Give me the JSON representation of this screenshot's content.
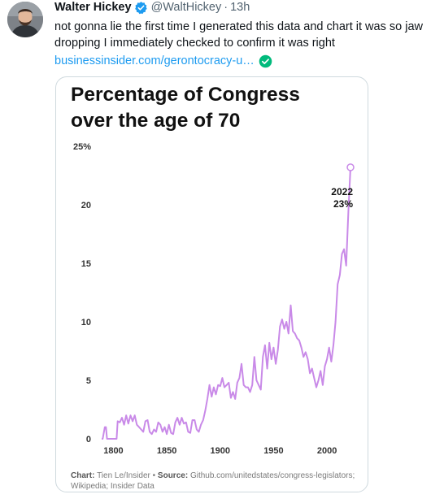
{
  "tweet": {
    "author_name": "Walter Hickey",
    "handle": "@WaltHickey",
    "separator": "·",
    "time": "13h",
    "text": "not gonna lie the first time I generated this data and chart it was so jaw dropping I immediately checked to confirm it was right",
    "link_text": "businessinsider.com/gerontocracy-u…",
    "icons": {
      "verified": "verified-badge-icon",
      "link_check": "check-circle-icon"
    }
  },
  "card": {
    "title": "Percentage of Congress over the age of 70",
    "footer": {
      "chart_label": "Chart:",
      "chart_credit": "Tien Le/Insider",
      "bullet": "•",
      "source_label": "Source:",
      "source_text": "Github.com/unitedstates/congress-legislators; Wikipedia; Insider Data"
    }
  },
  "chart_data": {
    "type": "line",
    "title": "Percentage of Congress over the age of 70",
    "xlabel": "",
    "ylabel": "",
    "xlim": [
      1789,
      2022
    ],
    "ylim": [
      0,
      25
    ],
    "x_ticks": [
      "1800",
      "1850",
      "1900",
      "1950",
      "2000"
    ],
    "x_tick_values": [
      1800,
      1850,
      1900,
      1950,
      2000
    ],
    "y_ticks": [
      "0",
      "5",
      "10",
      "15",
      "20",
      "25%"
    ],
    "y_tick_values": [
      0,
      5,
      10,
      15,
      20,
      25
    ],
    "grid": false,
    "line_color": "#c98ae8",
    "annotation": {
      "year_label": "2022",
      "value_label": "23%",
      "x": 2022,
      "y": 23.2
    },
    "series": [
      {
        "values_x": [
          1789,
          1790,
          1792,
          1793,
          1794,
          1796,
          1798,
          1800,
          1803,
          1804,
          1806,
          1808,
          1810,
          1811,
          1812,
          1814,
          1816,
          1818,
          1820,
          1822,
          1824,
          1826,
          1828,
          1830,
          1832,
          1834,
          1836,
          1838,
          1840,
          1842,
          1844,
          1846,
          1848,
          1850,
          1852,
          1854,
          1856,
          1858,
          1860,
          1862,
          1864,
          1866,
          1868,
          1870,
          1872,
          1874,
          1876,
          1878,
          1880,
          1882,
          1884,
          1886,
          1888,
          1890,
          1892,
          1894,
          1896,
          1898,
          1900,
          1902,
          1904,
          1906,
          1908,
          1910,
          1912,
          1914,
          1916,
          1918,
          1920,
          1922,
          1924,
          1926,
          1928,
          1930,
          1932,
          1934,
          1936,
          1938,
          1940,
          1942,
          1944,
          1946,
          1948,
          1950,
          1952,
          1954,
          1956,
          1958,
          1960,
          1962,
          1964,
          1966,
          1968,
          1970,
          1972,
          1974,
          1976,
          1978,
          1980,
          1982,
          1984,
          1986,
          1988,
          1990,
          1992,
          1994,
          1996,
          1998,
          2000,
          2002,
          2004,
          2006,
          2008,
          2010,
          2012,
          2014,
          2016,
          2018,
          2020,
          2022
        ],
        "values_y": [
          0,
          0,
          1,
          1,
          0,
          0,
          0,
          0,
          0,
          1.5,
          1.4,
          1.8,
          1.2,
          1.6,
          2,
          1.3,
          2,
          1.5,
          2,
          1.2,
          1,
          0.8,
          0.6,
          1.5,
          1.6,
          0.6,
          0.4,
          0.8,
          0.6,
          1.4,
          1.2,
          0.6,
          1.0,
          0.4,
          1.2,
          0.5,
          0.4,
          1.4,
          1.8,
          1.2,
          1.8,
          1.3,
          1.4,
          0.6,
          0.5,
          1.6,
          1.6,
          0.8,
          0.6,
          1.2,
          1.6,
          2.4,
          3.4,
          4.6,
          3.6,
          4.4,
          3.8,
          4.6,
          4.5,
          5.2,
          4.4,
          4.6,
          4.8,
          3.5,
          4.0,
          3.4,
          4.8,
          5.2,
          6.4,
          4.6,
          4.4,
          4.4,
          4.0,
          4.6,
          7.0,
          5.0,
          4.6,
          4.2,
          7.0,
          8.0,
          6.0,
          8.2,
          6.8,
          7.8,
          6.4,
          7.6,
          9.6,
          10.2,
          9.4,
          10.0,
          9.0,
          11.4,
          9.2,
          9.0,
          8.6,
          8.4,
          7.8,
          7.0,
          7.4,
          6.8,
          5.6,
          6.0,
          5.2,
          4.4,
          5.0,
          5.8,
          4.6,
          6.2,
          6.8,
          7.8,
          6.6,
          8.0,
          10.0,
          13.2,
          14.0,
          15.8,
          16.2,
          14.8,
          19.4,
          23.2
        ]
      }
    ]
  }
}
